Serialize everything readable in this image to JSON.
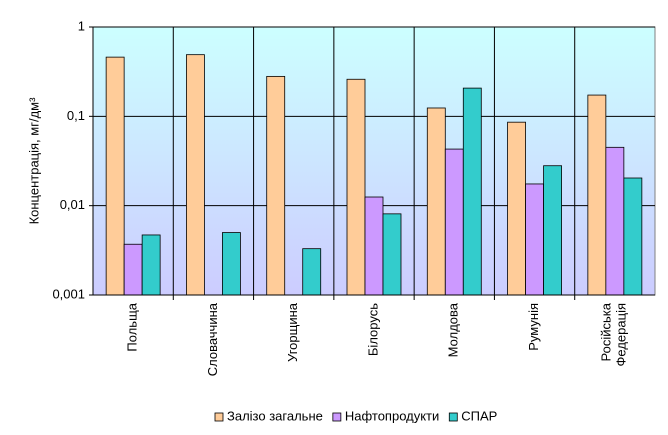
{
  "chart_data": {
    "type": "bar",
    "y_label": "Концентрація, мг/дм³",
    "categories": [
      "Польща",
      "Словаччина",
      "Угорщина",
      "Білорусь",
      "Молдова",
      "Румунія",
      "Російська Федерація"
    ],
    "series": [
      {
        "name": "Залізо загальне",
        "color": "#FFCC99",
        "values": [
          0.46,
          0.49,
          0.28,
          0.26,
          0.124,
          0.086,
          0.173
        ]
      },
      {
        "name": "Нафтопродукти",
        "color": "#CC99FF",
        "values": [
          0.0037,
          null,
          null,
          0.0125,
          0.043,
          0.0175,
          0.045
        ]
      },
      {
        "name": "СПАР",
        "color": "#33CCCC",
        "values": [
          0.0047,
          0.005,
          0.0033,
          0.0081,
          0.207,
          0.028,
          0.0204
        ]
      }
    ],
    "ylim": [
      0.001,
      1
    ],
    "yticks": [
      {
        "value": 0.001,
        "label": "0,001"
      },
      {
        "value": 0.01,
        "label": "0,01"
      },
      {
        "value": 0.1,
        "label": "0,1"
      },
      1
    ],
    "log_scale": true,
    "grid": true,
    "legend": "bottom"
  }
}
